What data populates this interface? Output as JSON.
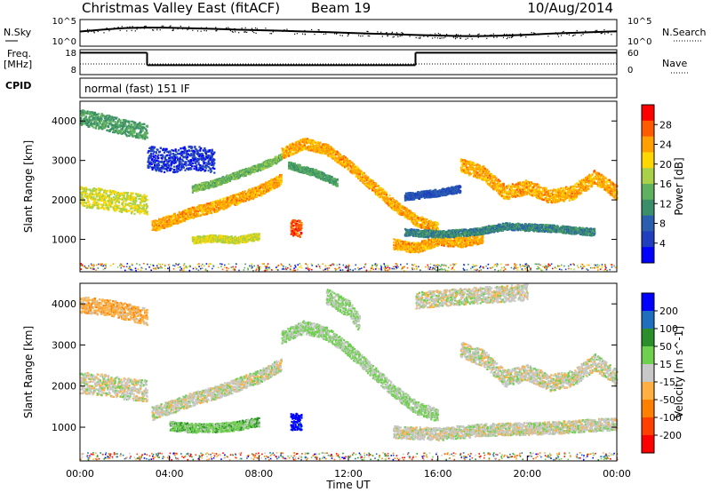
{
  "header": {
    "station": "Christmas Valley East (fitACF)",
    "beam": "Beam 19",
    "date": "10/Aug/2014"
  },
  "chart_data": [
    {
      "type": "line",
      "panel": "noise",
      "left_label": "N.Sky",
      "right_label": "N.Search",
      "yticks_left": [
        "10^5",
        "10^0"
      ],
      "yticks_right": [
        "10^5",
        "10^0"
      ],
      "x_hours": [
        0,
        1,
        2,
        3,
        4,
        5,
        6,
        7,
        8,
        9,
        10,
        11,
        12,
        13,
        14,
        15,
        16,
        17,
        18,
        19,
        20,
        21,
        22,
        23,
        24
      ],
      "series": [
        {
          "values_pct": [
            0.55,
            0.62,
            0.68,
            0.7,
            0.69,
            0.67,
            0.65,
            0.62,
            0.6,
            0.58,
            0.55,
            0.53,
            0.5,
            0.47,
            0.45,
            0.42,
            0.4,
            0.38,
            0.38,
            0.4,
            0.43,
            0.47,
            0.5,
            0.53,
            0.56
          ]
        }
      ]
    },
    {
      "type": "line",
      "panel": "frequency",
      "left_label": "Freq.",
      "left_unit": "[MHz]",
      "right_label": "Nave",
      "yticks_left": [
        "18",
        "8"
      ],
      "yticks_right": [
        "60",
        "0"
      ],
      "ylim": [
        8,
        18
      ],
      "steps": [
        {
          "from_hour": 0.0,
          "to_hour": 3.0,
          "value": 16.8
        },
        {
          "from_hour": 3.0,
          "to_hour": 15.0,
          "value": 11.8
        },
        {
          "from_hour": 15.0,
          "to_hour": 24.0,
          "value": 16.8
        }
      ]
    },
    {
      "type": "heatmap",
      "panel": "cpid",
      "left_label": "CPID",
      "label": "normal (fast) 151 IF"
    },
    {
      "type": "heatmap",
      "panel": "power",
      "ylabel": "Slant Range [km]",
      "xlabel": "",
      "ylim": [
        180,
        4500
      ],
      "yticks": [
        "1000",
        "2000",
        "3000",
        "4000"
      ],
      "colorbar_label": "Power [dB]",
      "colorbar_ticks": [
        "28",
        "24",
        "20",
        "16",
        "12",
        "8",
        "4"
      ],
      "colorbar_colors": [
        "#ff0000",
        "#ff5a00",
        "#ff9f00",
        "#ffd700",
        "#a8d048",
        "#5fb05f",
        "#3a8f6a",
        "#2a5fb0",
        "#1f3fbf",
        "#0000ff"
      ],
      "traces": [
        {
          "pts": [
            [
              0.0,
              2100
            ],
            [
              1.0,
              2050
            ],
            [
              2.0,
              1950
            ],
            [
              3.0,
              1900
            ]
          ],
          "band": 260,
          "value": 20
        },
        {
          "pts": [
            [
              3.2,
              1350
            ],
            [
              4.0,
              1500
            ],
            [
              5.0,
              1700
            ],
            [
              6.0,
              1850
            ],
            [
              7.0,
              2050
            ],
            [
              8.0,
              2250
            ],
            [
              9.0,
              2550
            ]
          ],
          "band": 140,
          "value": 24
        },
        {
          "pts": [
            [
              9.0,
              3200
            ],
            [
              10.0,
              3450
            ],
            [
              11.0,
              3300
            ],
            [
              12.0,
              2900
            ],
            [
              13.0,
              2400
            ],
            [
              14.0,
              1900
            ],
            [
              15.0,
              1500
            ],
            [
              16.0,
              1300
            ]
          ],
          "band": 140,
          "value": 24
        },
        {
          "pts": [
            [
              5.0,
              2300
            ],
            [
              6.0,
              2450
            ],
            [
              7.0,
              2650
            ],
            [
              8.0,
              2850
            ],
            [
              9.0,
              3100
            ]
          ],
          "band": 90,
          "value": 16
        },
        {
          "pts": [
            [
              9.3,
              2900
            ],
            [
              10.5,
              2700
            ],
            [
              11.5,
              2450
            ]
          ],
          "band": 90,
          "value": 14
        },
        {
          "pts": [
            [
              14.0,
              900
            ],
            [
              15.0,
              800
            ],
            [
              16.0,
              1000
            ],
            [
              17.0,
              950
            ],
            [
              18.0,
              1050
            ]
          ],
          "band": 130,
          "value": 24
        },
        {
          "pts": [
            [
              14.5,
              1200
            ],
            [
              16.0,
              1150
            ],
            [
              17.5,
              1200
            ],
            [
              19.0,
              1350
            ],
            [
              21.0,
              1300
            ],
            [
              23.0,
              1200
            ]
          ],
          "band": 90,
          "value": 12
        },
        {
          "pts": [
            [
              17.0,
              2900
            ],
            [
              18.0,
              2700
            ],
            [
              19.0,
              2200
            ],
            [
              20.0,
              2350
            ],
            [
              21.0,
              2100
            ],
            [
              22.0,
              2200
            ],
            [
              23.0,
              2600
            ],
            [
              24.0,
              2200
            ]
          ],
          "band": 180,
          "value": 24
        },
        {
          "pts": [
            [
              0.0,
              4100
            ],
            [
              1.0,
              4000
            ],
            [
              2.0,
              3850
            ],
            [
              3.0,
              3750
            ]
          ],
          "band": 200,
          "value": 14
        },
        {
          "pts": [
            [
              5.0,
              1000
            ],
            [
              6.0,
              1050
            ],
            [
              7.0,
              1000
            ],
            [
              8.0,
              1100
            ]
          ],
          "band": 90,
          "value": 20
        },
        {
          "pts": [
            [
              9.4,
              1300
            ],
            [
              9.9,
              1300
            ]
          ],
          "band": 220,
          "value": 28
        },
        {
          "pts": [
            [
              14.5,
              2100
            ],
            [
              16.0,
              2200
            ],
            [
              17.0,
              2300
            ]
          ],
          "band": 90,
          "value": 8
        },
        {
          "pts": [
            [
              3.0,
              3100
            ],
            [
              4.0,
              3000
            ],
            [
              5.0,
              3100
            ],
            [
              6.0,
              3000
            ]
          ],
          "band": 300,
          "value": 6
        }
      ]
    },
    {
      "type": "heatmap",
      "panel": "velocity",
      "ylabel": "Slant Range [km]",
      "xlabel": "Time UT",
      "ylim": [
        180,
        4500
      ],
      "yticks": [
        "1000",
        "2000",
        "3000",
        "4000"
      ],
      "xticks": [
        "00:00",
        "04:00",
        "08:00",
        "12:00",
        "16:00",
        "20:00",
        "00:00"
      ],
      "colorbar_label": "Velocity [m s^-1]",
      "colorbar_ticks": [
        "200",
        "100",
        "50",
        "15",
        "-15",
        "-50",
        "-100",
        "-200"
      ],
      "colorbar_colors": [
        "#0000ff",
        "#1f6fbf",
        "#2a8f2a",
        "#6fd04f",
        "#c8c8c8",
        "#ffb040",
        "#ff8000",
        "#ff4000",
        "#ff0000"
      ],
      "traces": [
        {
          "pts": [
            [
              0.0,
              2100
            ],
            [
              1.0,
              2050
            ],
            [
              2.0,
              1950
            ],
            [
              3.0,
              1900
            ]
          ],
          "band": 260,
          "value": 0
        },
        {
          "pts": [
            [
              3.2,
              1350
            ],
            [
              4.0,
              1500
            ],
            [
              5.0,
              1700
            ],
            [
              6.0,
              1850
            ],
            [
              7.0,
              2050
            ],
            [
              8.0,
              2250
            ],
            [
              9.0,
              2550
            ]
          ],
          "band": 160,
          "value": 0
        },
        {
          "pts": [
            [
              9.0,
              3200
            ],
            [
              10.0,
              3450
            ],
            [
              11.0,
              3300
            ],
            [
              12.0,
              2900
            ],
            [
              13.0,
              2400
            ],
            [
              14.0,
              1900
            ],
            [
              15.0,
              1500
            ],
            [
              16.0,
              1300
            ]
          ],
          "band": 160,
          "value": 30
        },
        {
          "pts": [
            [
              14.0,
              900
            ],
            [
              16.0,
              850
            ],
            [
              18.0,
              950
            ],
            [
              21.0,
              1000
            ],
            [
              24.0,
              1100
            ]
          ],
          "band": 150,
          "value": 0
        },
        {
          "pts": [
            [
              17.0,
              2900
            ],
            [
              18.0,
              2700
            ],
            [
              19.0,
              2200
            ],
            [
              20.0,
              2350
            ],
            [
              21.0,
              2100
            ],
            [
              22.0,
              2200
            ],
            [
              23.0,
              2600
            ],
            [
              24.0,
              2200
            ]
          ],
          "band": 200,
          "value": 0
        },
        {
          "pts": [
            [
              4.0,
              1050
            ],
            [
              5.0,
              1000
            ],
            [
              6.0,
              1000
            ],
            [
              7.0,
              1050
            ],
            [
              8.0,
              1150
            ]
          ],
          "band": 110,
          "value": 50
        },
        {
          "pts": [
            [
              9.4,
              1150
            ],
            [
              9.9,
              1150
            ]
          ],
          "band": 200,
          "value": 200
        },
        {
          "pts": [
            [
              0.0,
              4000
            ],
            [
              1.5,
              3900
            ],
            [
              3.0,
              3700
            ]
          ],
          "band": 200,
          "value": -50
        },
        {
          "pts": [
            [
              11.0,
              4200
            ],
            [
              12.0,
              3900
            ],
            [
              12.5,
              3500
            ]
          ],
          "band": 200,
          "value": 30
        },
        {
          "pts": [
            [
              15.0,
              4100
            ],
            [
              17.0,
              4200
            ],
            [
              20.0,
              4300
            ]
          ],
          "band": 200,
          "value": 0
        }
      ]
    }
  ]
}
